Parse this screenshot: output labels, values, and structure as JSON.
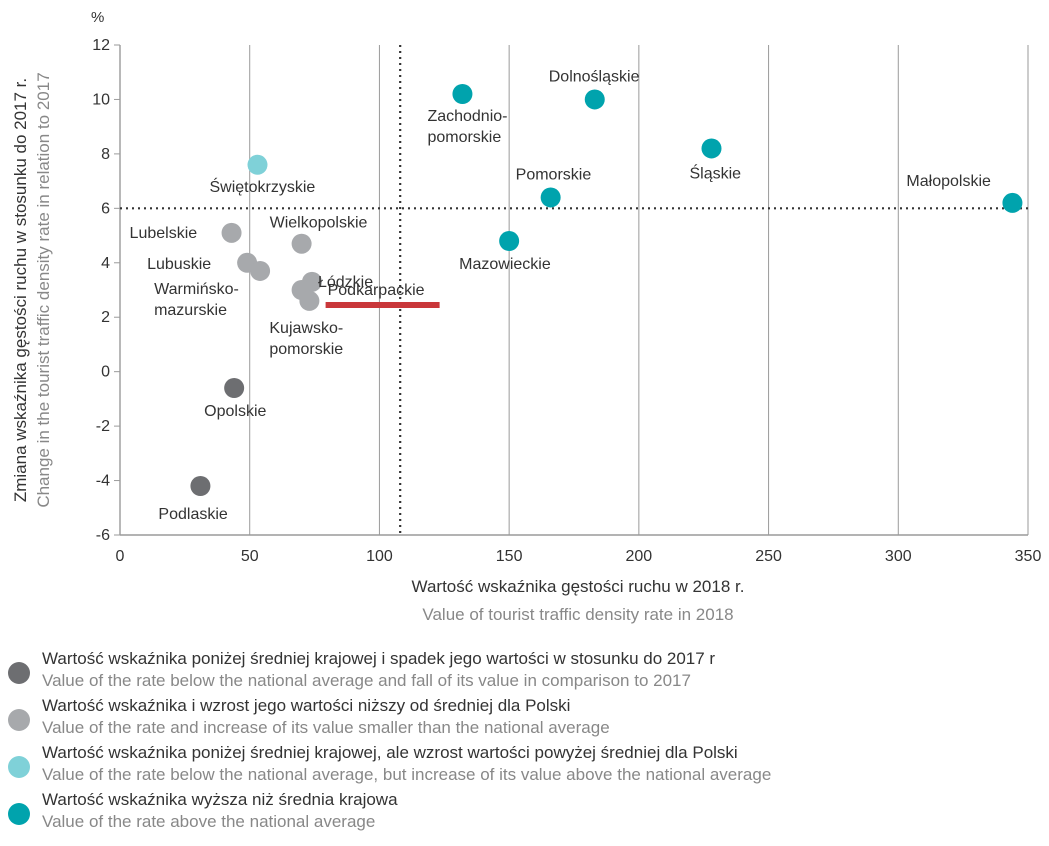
{
  "chart_data": {
    "type": "scatter",
    "title": "",
    "xlabel": "Wartość wskaźnika gęstości ruchu w 2018 r.",
    "xlabel_en": "Value of tourist traffic density rate in 2018",
    "ylabel": "Zmiana wskaźnika gęstości ruchu w stosunku do 2017 r.",
    "ylabel_en": "Change in the tourist traffic density rate in relation to 2017",
    "y_unit": "%",
    "xlim": [
      0,
      350
    ],
    "ylim": [
      -6,
      12
    ],
    "x_ticks": [
      "0",
      "50",
      "100",
      "150",
      "200",
      "250",
      "300",
      "350"
    ],
    "y_ticks": [
      "12",
      "10",
      "8",
      "6",
      "4",
      "2",
      "0",
      "-2",
      "-4",
      "-6"
    ],
    "x_tick_values": [
      0,
      50,
      100,
      150,
      200,
      250,
      300,
      350
    ],
    "y_tick_values": [
      12,
      10,
      8,
      6,
      4,
      2,
      0,
      -2,
      -4,
      -6
    ],
    "grid": "vertical",
    "reference_lines": {
      "x": 108,
      "y": 6
    },
    "highlight": {
      "label": "Podkarpackie"
    },
    "category_colors": {
      "below_fall": "#6d6e71",
      "below_increase_below": "#a7a9ac",
      "below_increase_above": "#7fd1d8",
      "above": "#00a3ad"
    },
    "points": [
      {
        "label": "Dolnośląskie",
        "x": 183,
        "y": 10.0,
        "category": "above"
      },
      {
        "label": "Zachodnio-\npomorskie",
        "x": 132,
        "y": 10.2,
        "category": "above"
      },
      {
        "label": "Śląskie",
        "x": 228,
        "y": 8.2,
        "category": "above"
      },
      {
        "label": "Pomorskie",
        "x": 166,
        "y": 6.4,
        "category": "above"
      },
      {
        "label": "Małopolskie",
        "x": 344,
        "y": 6.2,
        "category": "above"
      },
      {
        "label": "Mazowieckie",
        "x": 150,
        "y": 4.8,
        "category": "above"
      },
      {
        "label": "Świętokrzyskie",
        "x": 53,
        "y": 7.6,
        "category": "below_increase_above"
      },
      {
        "label": "Lubelskie",
        "x": 43,
        "y": 5.1,
        "category": "below_increase_below"
      },
      {
        "label": "Wielkopolskie",
        "x": 70,
        "y": 4.7,
        "category": "below_increase_below"
      },
      {
        "label": "Lubuskie",
        "x": 49,
        "y": 4.0,
        "category": "below_increase_below"
      },
      {
        "label": "Warmińsko-\nmazurskie",
        "x": 54,
        "y": 3.7,
        "category": "below_increase_below"
      },
      {
        "label": "Łódzkie",
        "x": 74,
        "y": 3.3,
        "category": "below_increase_below"
      },
      {
        "label": "Podkarpackie",
        "x": 70,
        "y": 3.0,
        "category": "below_increase_below"
      },
      {
        "label": "Kujawsko-\npomorskie",
        "x": 73,
        "y": 2.6,
        "category": "below_increase_below"
      },
      {
        "label": "Opolskie",
        "x": 44,
        "y": -0.6,
        "category": "below_fall"
      },
      {
        "label": "Podlaskie",
        "x": 31,
        "y": -4.2,
        "category": "below_fall"
      }
    ]
  },
  "legend": [
    {
      "category": "below_fall",
      "pl": "Wartość wskaźnika poniżej średniej krajowej i spadek jego wartości w stosunku do 2017 r",
      "en": "Value of the rate below the national average and fall of its value in comparison to 2017"
    },
    {
      "category": "below_increase_below",
      "pl": "Wartość wskaźnika i wzrost jego wartości niższy od średniej dla Polski",
      "en": "Value of the rate and increase of its value smaller than the national average"
    },
    {
      "category": "below_increase_above",
      "pl": "Wartość wskaźnika poniżej średniej krajowej, ale wzrost wartości powyżej średniej dla Polski",
      "en": "Value of the rate below the national average, but increase of its value above the national average"
    },
    {
      "category": "above",
      "pl": "Wartość wskaźnika wyższa niż średnia krajowa",
      "en": "Value of the rate above the national average"
    }
  ]
}
